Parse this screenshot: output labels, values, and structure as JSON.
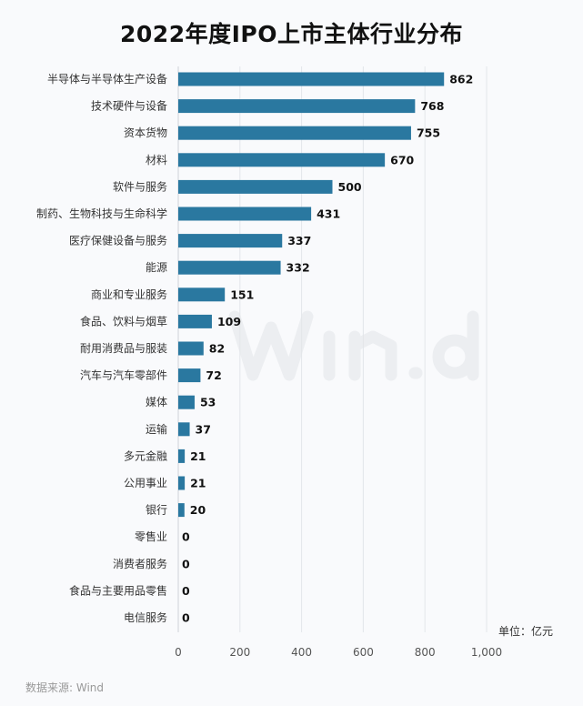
{
  "chart_data": {
    "type": "bar",
    "orientation": "horizontal",
    "title": "2022年度IPO上市主体行业分布",
    "categories": [
      "半导体与半导体生产设备",
      "技术硬件与设备",
      "资本货物",
      "材料",
      "软件与服务",
      "制药、生物科技与生命科学",
      "医疗保健设备与服务",
      "能源",
      "商业和专业服务",
      "食品、饮料与烟草",
      "耐用消费品与服装",
      "汽车与汽车零部件",
      "媒体",
      "运输",
      "多元金融",
      "公用事业",
      "银行",
      "零售业",
      "消费者服务",
      "食品与主要用品零售",
      "电信服务"
    ],
    "values": [
      862,
      768,
      755,
      670,
      500,
      431,
      337,
      332,
      151,
      109,
      82,
      72,
      53,
      37,
      21,
      21,
      20,
      0,
      0,
      0,
      0
    ],
    "xlim": [
      0,
      1000
    ],
    "xticks": [
      "0",
      "200",
      "400",
      "600",
      "800",
      "1,000"
    ],
    "grid": true,
    "unit_label": "单位：亿元",
    "bar_color": "#2a78a0"
  },
  "source": "数据来源: Wind",
  "watermark": "Win.d"
}
